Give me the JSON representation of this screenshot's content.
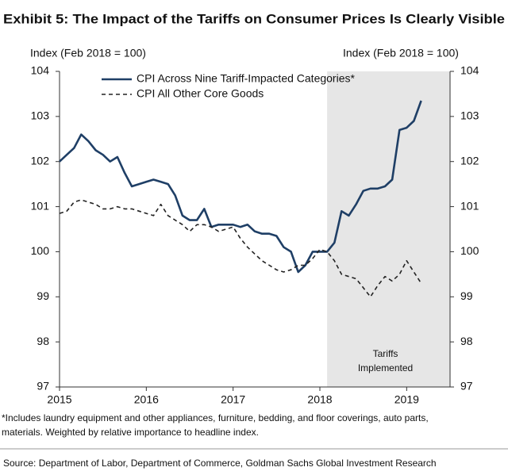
{
  "chart_data": {
    "type": "line",
    "title": "Exhibit 5: The Impact of the Tariffs on Consumer Prices Is Clearly Visible",
    "y_label": "Index (Feb 2018 = 100)",
    "y2_label": "Index (Feb 2018 = 100)",
    "x": [
      2015.0,
      2015.083,
      2015.167,
      2015.25,
      2015.333,
      2015.417,
      2015.5,
      2015.583,
      2015.667,
      2015.75,
      2015.833,
      2015.917,
      2016.0,
      2016.083,
      2016.167,
      2016.25,
      2016.333,
      2016.417,
      2016.5,
      2016.583,
      2016.667,
      2016.75,
      2016.833,
      2016.917,
      2017.0,
      2017.083,
      2017.167,
      2017.25,
      2017.333,
      2017.417,
      2017.5,
      2017.583,
      2017.667,
      2017.75,
      2017.833,
      2017.917,
      2018.0,
      2018.083,
      2018.167,
      2018.25,
      2018.333,
      2018.417,
      2018.5,
      2018.583,
      2018.667,
      2018.75,
      2018.833,
      2018.917,
      2019.0,
      2019.083,
      2019.167
    ],
    "series": [
      {
        "name": "CPI Across Nine Tariff-Impacted Categories*",
        "color": "#1f3f66",
        "dash": false,
        "values": [
          102.0,
          102.15,
          102.3,
          102.6,
          102.45,
          102.25,
          102.15,
          102.0,
          102.1,
          101.75,
          101.45,
          101.5,
          101.55,
          101.6,
          101.55,
          101.5,
          101.25,
          100.8,
          100.7,
          100.7,
          100.95,
          100.55,
          100.6,
          100.6,
          100.6,
          100.55,
          100.6,
          100.45,
          100.4,
          100.4,
          100.35,
          100.1,
          100.0,
          99.55,
          99.7,
          100.0,
          100.0,
          100.0,
          100.2,
          100.9,
          100.8,
          101.05,
          101.35,
          101.4,
          101.4,
          101.45,
          101.6,
          102.7,
          102.75,
          102.9,
          103.35
        ]
      },
      {
        "name": "CPI All Other Core Goods",
        "color": "#222222",
        "dash": true,
        "values": [
          100.85,
          100.9,
          101.1,
          101.15,
          101.1,
          101.05,
          100.95,
          100.95,
          101.0,
          100.95,
          100.95,
          100.9,
          100.85,
          100.8,
          101.05,
          100.8,
          100.7,
          100.6,
          100.45,
          100.6,
          100.6,
          100.55,
          100.45,
          100.5,
          100.55,
          100.3,
          100.1,
          99.95,
          99.8,
          99.7,
          99.6,
          99.55,
          99.6,
          99.7,
          99.7,
          99.85,
          100.05,
          100.0,
          99.8,
          99.5,
          99.45,
          99.4,
          99.2,
          99.0,
          99.25,
          99.45,
          99.35,
          99.5,
          99.8,
          99.55,
          99.3
        ]
      }
    ],
    "xlim": [
      2015,
      2019.5
    ],
    "xticks": [
      2015,
      2016,
      2017,
      2018,
      2019
    ],
    "ylim": [
      97,
      104
    ],
    "yticks": [
      97,
      98,
      99,
      100,
      101,
      102,
      103,
      104
    ],
    "y2lim": [
      97,
      104
    ],
    "y2ticks": [
      97,
      98,
      99,
      100,
      101,
      102,
      103,
      104
    ],
    "shaded_range": [
      2018.083,
      2019.5
    ],
    "annotation": [
      "Tariffs",
      "Implemented"
    ],
    "footnote": [
      "*Includes laundry equipment and other appliances, furniture, bedding, and floor coverings, auto parts,",
      "materials. Weighted by relative importance to headline index."
    ],
    "source": "Source: Department of Labor, Department of Commerce, Goldman Sachs Global Investment Research"
  }
}
